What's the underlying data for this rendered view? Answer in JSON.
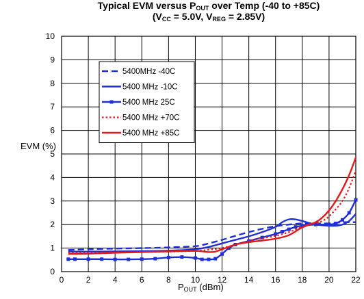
{
  "title_line1_prefix": "Typical EVM versus P",
  "title_line1_sub": "OUT",
  "title_line1_suffix": " over Temp (-40 to +85C)",
  "title_line2_a": "(V",
  "title_line2_sub1": "CC",
  "title_line2_b": " = 5.0V, V",
  "title_line2_sub2": "REG",
  "title_line2_c": " = 2.85V)",
  "ylabel": "EVM (%)",
  "xlabel_main": "P",
  "xlabel_sub": "OUT",
  "xlabel_suffix": " (dBm)",
  "chart_data": {
    "type": "line",
    "title": "Typical EVM versus POUT over Temp (-40 to +85C) (VCC = 5.0V, VREG = 2.85V)",
    "xlabel": "POUT (dBm)",
    "ylabel": "EVM (%)",
    "xlim": [
      0,
      22
    ],
    "ylim": [
      0,
      10
    ],
    "xticks": [
      0,
      2,
      4,
      6,
      8,
      10,
      12,
      14,
      16,
      18,
      20,
      22
    ],
    "yticks": [
      0,
      1,
      2,
      3,
      4,
      5,
      6,
      7,
      8,
      9,
      10
    ],
    "grid": true,
    "legend_position": "upper-left",
    "series": [
      {
        "name": "5400MHz -40C",
        "color": "#1f2fd6",
        "style": "dashed",
        "x": [
          0.5,
          2,
          4,
          6,
          8,
          10,
          11,
          12,
          13,
          14,
          15,
          16,
          17,
          18,
          19,
          20,
          21,
          22
        ],
        "y": [
          0.92,
          0.95,
          0.98,
          1.0,
          1.03,
          1.08,
          1.2,
          1.35,
          1.52,
          1.68,
          1.82,
          1.93,
          2.0,
          2.05,
          2.05,
          2.05,
          2.1,
          2.1
        ]
      },
      {
        "name": "5400 MHz -10C",
        "color": "#1f2fd6",
        "style": "solid",
        "x": [
          0.5,
          2,
          4,
          6,
          8,
          10,
          11,
          12,
          13,
          14,
          15,
          16,
          16.5,
          17,
          17.5,
          18,
          19,
          20,
          20.5,
          21,
          21.5,
          22
        ],
        "y": [
          0.85,
          0.85,
          0.86,
          0.87,
          0.89,
          0.95,
          1.05,
          1.2,
          1.35,
          1.5,
          1.68,
          1.9,
          2.1,
          2.22,
          2.22,
          2.15,
          2.0,
          1.95,
          1.95,
          2.0,
          2.15,
          2.45
        ]
      },
      {
        "name": "5400 MHz 25C",
        "color": "#1f2fd6",
        "style": "solid-marker",
        "x": [
          0.5,
          1,
          2,
          3,
          4,
          5,
          6,
          7,
          8,
          9,
          10,
          10.5,
          11,
          11.5,
          12,
          12.5,
          13,
          14,
          15,
          16,
          16.5,
          17,
          17.5,
          18,
          19,
          20,
          20.5,
          21,
          21.5,
          22
        ],
        "y": [
          0.53,
          0.53,
          0.53,
          0.53,
          0.52,
          0.52,
          0.53,
          0.55,
          0.6,
          0.62,
          0.58,
          0.52,
          0.52,
          0.55,
          0.75,
          1.0,
          1.15,
          1.3,
          1.45,
          1.6,
          1.7,
          1.8,
          1.9,
          1.95,
          2.0,
          2.0,
          2.05,
          2.2,
          2.5,
          3.05
        ]
      },
      {
        "name": "5400 MHz +70C",
        "color": "#e11b1b",
        "style": "dotted",
        "x": [
          0.5,
          2,
          4,
          6,
          8,
          10,
          11,
          12,
          13,
          14,
          15,
          16,
          17,
          18,
          19,
          19.5,
          20,
          20.5,
          21,
          21.5,
          22
        ],
        "y": [
          0.8,
          0.8,
          0.82,
          0.83,
          0.85,
          0.88,
          0.93,
          1.0,
          1.15,
          1.3,
          1.42,
          1.52,
          1.68,
          1.9,
          2.05,
          2.15,
          2.35,
          2.65,
          3.0,
          3.55,
          4.3
        ]
      },
      {
        "name": "5400 MHz +85C",
        "color": "#e11b1b",
        "style": "solid",
        "x": [
          0.5,
          2,
          4,
          6,
          8,
          10,
          11,
          11.5,
          12,
          12.5,
          13,
          14,
          15,
          16,
          17,
          18,
          19,
          19.5,
          20,
          20.5,
          21,
          21.5,
          22
        ],
        "y": [
          0.75,
          0.76,
          0.8,
          0.83,
          0.86,
          0.88,
          0.83,
          0.85,
          0.95,
          1.05,
          1.15,
          1.25,
          1.32,
          1.4,
          1.55,
          1.88,
          2.1,
          2.3,
          2.6,
          3.0,
          3.5,
          4.1,
          4.85
        ]
      }
    ]
  }
}
